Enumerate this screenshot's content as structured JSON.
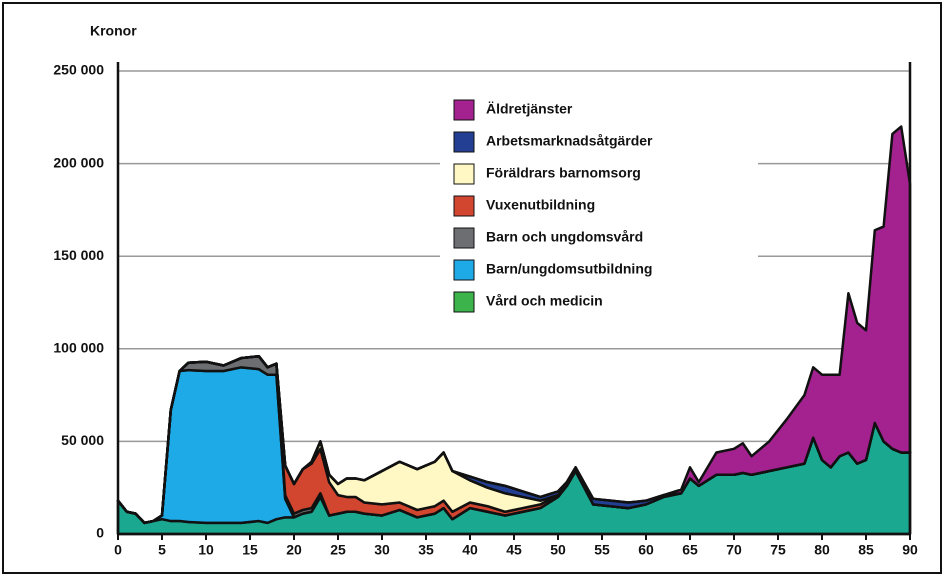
{
  "chart_data": {
    "type": "stacked_area",
    "y_label": "Kronor",
    "x": [
      0,
      1,
      2,
      3,
      4,
      5,
      6,
      7,
      8,
      10,
      12,
      14,
      16,
      17,
      18,
      19,
      20,
      21,
      22,
      23,
      24,
      25,
      26,
      27,
      28,
      30,
      32,
      34,
      36,
      37,
      38,
      40,
      42,
      44,
      46,
      48,
      50,
      51,
      52,
      54,
      56,
      58,
      60,
      62,
      64,
      65,
      66,
      68,
      70,
      71,
      72,
      74,
      76,
      78,
      79,
      80,
      81,
      82,
      83,
      84,
      85,
      86,
      87,
      88,
      89,
      90
    ],
    "series": [
      {
        "name": "Vård och medicin",
        "color": "#1aa890",
        "legend_color": "#3cb44b",
        "values": [
          18000,
          12000,
          11000,
          6000,
          7000,
          8000,
          7000,
          7000,
          6500,
          6000,
          6000,
          6000,
          7000,
          6000,
          8000,
          9000,
          9000,
          11000,
          12000,
          20000,
          10000,
          11000,
          12000,
          12000,
          11000,
          10000,
          13000,
          9000,
          11000,
          14000,
          8000,
          14000,
          12000,
          10000,
          12000,
          14000,
          20000,
          26000,
          34000,
          16000,
          15000,
          14000,
          16000,
          20000,
          22000,
          30000,
          26000,
          32000,
          32000,
          33000,
          32000,
          34000,
          36000,
          38000,
          52000,
          40000,
          36000,
          42000,
          44000,
          38000,
          40000,
          60000,
          50000,
          46000,
          44000,
          44000
        ]
      },
      {
        "name": "Barn/ungdomsutbildning",
        "color": "#1eaae7",
        "values": [
          0,
          0,
          0,
          0,
          0,
          2000,
          60000,
          81000,
          82000,
          82000,
          82000,
          84000,
          82000,
          80000,
          78000,
          10000,
          0,
          0,
          0,
          0,
          0,
          0,
          0,
          0,
          0,
          0,
          0,
          0,
          0,
          0,
          0,
          0,
          0,
          0,
          0,
          0,
          0,
          0,
          0,
          0,
          0,
          0,
          0,
          0,
          0,
          0,
          0,
          0,
          0,
          0,
          0,
          0,
          0,
          0,
          0,
          0,
          0,
          0,
          0,
          0,
          0,
          0,
          0,
          0,
          0,
          0
        ]
      },
      {
        "name": "Barn och ungdomsvård",
        "color": "#6d6e71",
        "values": [
          0,
          0,
          0,
          0,
          0,
          0,
          0,
          0,
          4000,
          5000,
          3000,
          5000,
          7000,
          4000,
          6000,
          2000,
          2000,
          2000,
          2000,
          2000,
          0,
          0,
          0,
          0,
          0,
          0,
          0,
          0,
          0,
          0,
          0,
          0,
          0,
          0,
          0,
          0,
          0,
          0,
          0,
          0,
          0,
          0,
          0,
          0,
          0,
          0,
          0,
          0,
          0,
          0,
          0,
          0,
          0,
          0,
          0,
          0,
          0,
          0,
          0,
          0,
          0,
          0,
          0,
          0,
          0,
          0
        ]
      },
      {
        "name": "Vuxenutbildning",
        "color": "#d2452f",
        "values": [
          0,
          0,
          0,
          0,
          0,
          0,
          0,
          0,
          0,
          0,
          0,
          0,
          0,
          0,
          0,
          16000,
          16000,
          22000,
          24000,
          24000,
          18000,
          10000,
          8000,
          8000,
          6000,
          6000,
          4000,
          4000,
          4000,
          4000,
          4000,
          3000,
          3000,
          2000,
          2000,
          2000,
          1000,
          0,
          0,
          0,
          0,
          0,
          0,
          0,
          0,
          0,
          0,
          0,
          0,
          0,
          0,
          0,
          0,
          0,
          0,
          0,
          0,
          0,
          0,
          0,
          0,
          0,
          0,
          0,
          0,
          0
        ]
      },
      {
        "name": "Föräldrars barnomsorg",
        "color": "#fff8c4",
        "values": [
          0,
          0,
          0,
          0,
          0,
          0,
          0,
          0,
          0,
          0,
          0,
          0,
          0,
          0,
          0,
          0,
          0,
          0,
          1000,
          4000,
          4000,
          6000,
          10000,
          10000,
          12000,
          18000,
          22000,
          22000,
          24000,
          26000,
          22000,
          12000,
          10000,
          10000,
          6000,
          2000,
          0,
          0,
          0,
          0,
          0,
          0,
          0,
          0,
          0,
          0,
          0,
          0,
          0,
          0,
          0,
          0,
          0,
          0,
          0,
          0,
          0,
          0,
          0,
          0,
          0,
          0,
          0,
          0,
          0,
          0
        ]
      },
      {
        "name": "Arbetsmarknadsåtgärder",
        "color": "#233f93",
        "values": [
          0,
          0,
          0,
          0,
          0,
          0,
          0,
          0,
          0,
          0,
          0,
          0,
          0,
          0,
          0,
          0,
          0,
          0,
          0,
          0,
          0,
          0,
          0,
          0,
          0,
          0,
          0,
          0,
          0,
          0,
          0,
          2000,
          3000,
          4000,
          3000,
          2000,
          2000,
          2000,
          2000,
          3000,
          3000,
          3000,
          2000,
          1000,
          0,
          0,
          0,
          0,
          0,
          0,
          0,
          0,
          0,
          0,
          0,
          0,
          0,
          0,
          0,
          0,
          0,
          0,
          0,
          0,
          0,
          0
        ]
      },
      {
        "name": "Äldretjänster",
        "color": "#a3228f",
        "values": [
          0,
          0,
          0,
          0,
          0,
          0,
          0,
          0,
          0,
          0,
          0,
          0,
          0,
          0,
          0,
          0,
          0,
          0,
          0,
          0,
          0,
          0,
          0,
          0,
          0,
          0,
          0,
          0,
          0,
          0,
          0,
          0,
          0,
          0,
          0,
          0,
          0,
          0,
          0,
          0,
          0,
          0,
          0,
          0,
          2000,
          6000,
          2000,
          12000,
          14000,
          16000,
          10000,
          16000,
          26000,
          37000,
          38000,
          46000,
          50000,
          44000,
          86000,
          76000,
          70000,
          104000,
          116000,
          170000,
          176000,
          145000
        ]
      }
    ],
    "xlim": [
      0,
      90
    ],
    "xticks": [
      0,
      5,
      10,
      15,
      20,
      25,
      30,
      35,
      40,
      45,
      50,
      55,
      60,
      65,
      70,
      75,
      80,
      85,
      90
    ],
    "ylim": [
      0,
      250000
    ],
    "yticks": [
      0,
      {
        "value": 50000,
        "label": "50 000"
      },
      {
        "value": 100000,
        "label": "100 000"
      },
      {
        "value": 150000,
        "label": "150 000"
      },
      {
        "value": 200000,
        "label": "200 000"
      },
      {
        "value": 250000,
        "label": "250 000"
      }
    ],
    "grid": true
  }
}
